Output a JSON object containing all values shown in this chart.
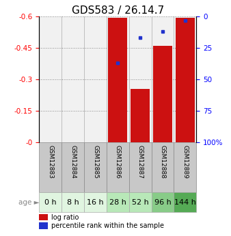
{
  "title": "GDS583 / 26.14.7",
  "categories": [
    "GSM12883",
    "GSM12884",
    "GSM12885",
    "GSM12886",
    "GSM12887",
    "GSM12888",
    "GSM12889"
  ],
  "age_labels": [
    "0 h",
    "8 h",
    "16 h",
    "28 h",
    "52 h",
    "96 h",
    "144 h"
  ],
  "log_ratio": [
    0.0,
    0.0,
    0.0,
    -0.595,
    -0.255,
    -0.46,
    -0.595
  ],
  "percentile_rank": [
    null,
    null,
    null,
    37.0,
    17.0,
    12.0,
    3.0
  ],
  "ylim_left": [
    0.0,
    -0.6
  ],
  "ylim_right": [
    100,
    0
  ],
  "yticks_left": [
    0,
    -0.15,
    -0.3,
    -0.45,
    -0.6
  ],
  "ytick_labels_left": [
    "-0",
    "-0.15",
    "-0.3",
    "-0.45",
    "-0.6"
  ],
  "yticks_right": [
    100,
    75,
    50,
    25,
    0
  ],
  "ytick_labels_right": [
    "100%",
    "75",
    "50",
    "25",
    "0"
  ],
  "bar_color": "#cc1111",
  "marker_color": "#2233cc",
  "gsm_bg_color": "#c8c8c8",
  "age_bg_colors": [
    "#e0f5e0",
    "#e0f5e0",
    "#e0f5e0",
    "#b8e8b8",
    "#b8e8b8",
    "#88cc88",
    "#55aa55"
  ],
  "bar_width": 0.85,
  "title_fontsize": 11,
  "tick_fontsize": 7.5,
  "label_fontsize": 6.5,
  "legend_fontsize": 7,
  "age_label_fontsize": 8
}
